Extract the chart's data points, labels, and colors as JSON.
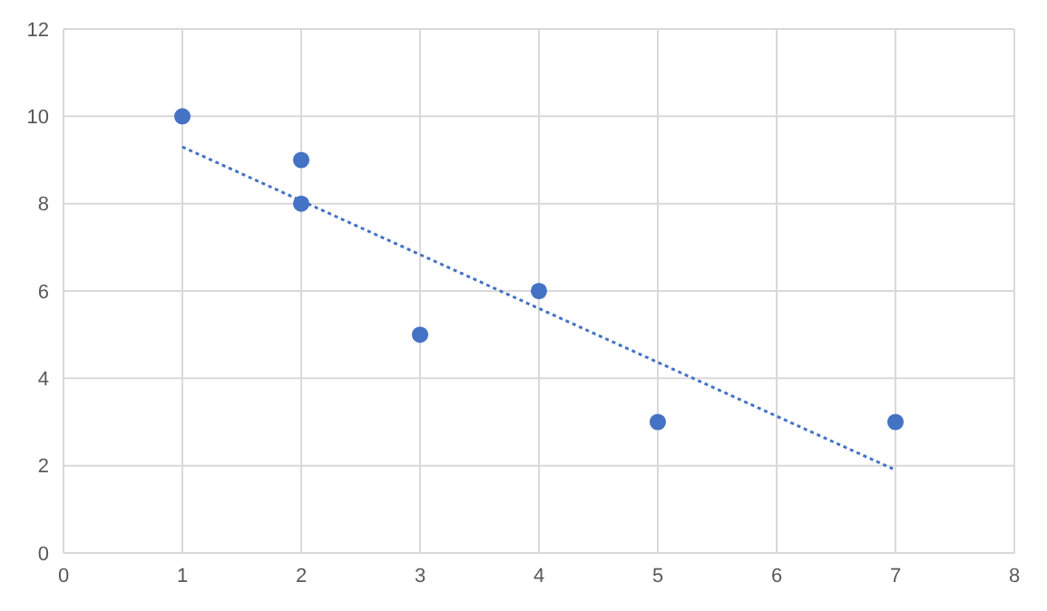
{
  "chart_data": {
    "type": "scatter",
    "xlim": [
      0,
      8
    ],
    "xticks": [
      0,
      1,
      2,
      3,
      4,
      5,
      6,
      7,
      8
    ],
    "ylim": [
      0,
      12
    ],
    "yticks": [
      0,
      2,
      4,
      6,
      8,
      10,
      12
    ],
    "grid": true,
    "marker": "circle",
    "series": [
      {
        "color": "#4472c4",
        "x": [
          1,
          2,
          2,
          3,
          4,
          5,
          7
        ],
        "values": [
          10,
          9,
          8,
          5,
          6,
          3,
          3
        ]
      },
      {
        "type": "line",
        "color": "#4472c4",
        "x": [
          1,
          7
        ],
        "values": [
          9.3,
          1.9
        ],
        "marker": "none",
        "line_style": "dotted"
      }
    ]
  }
}
